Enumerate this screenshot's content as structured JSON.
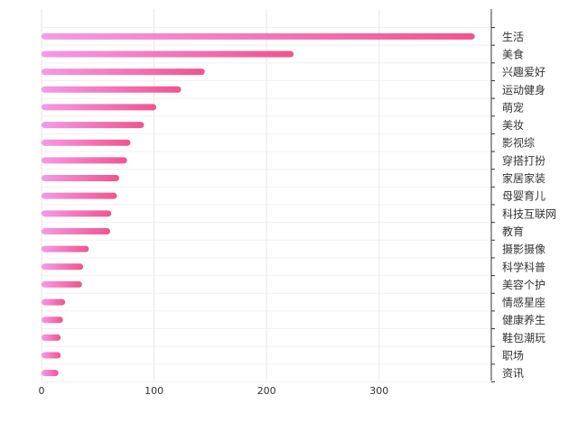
{
  "chart_data": {
    "type": "bar",
    "orientation": "horizontal",
    "categories": [
      "生活",
      "美食",
      "兴趣爱好",
      "运动健身",
      "萌宠",
      "美妆",
      "影视综",
      "穿搭打扮",
      "家居家装",
      "母婴育儿",
      "科技互联网",
      "教育",
      "摄影摄像",
      "科学科普",
      "美容个护",
      "情感星座",
      "健康养生",
      "鞋包潮玩",
      "职场",
      "资讯"
    ],
    "values": [
      385,
      224,
      145,
      124,
      102,
      91,
      79,
      76,
      69,
      67,
      62,
      61,
      42,
      37,
      36,
      21,
      19,
      17,
      17,
      15
    ],
    "xticks": [
      "0",
      "100",
      "200",
      "300"
    ],
    "xlim": [
      0,
      400
    ],
    "title": "",
    "xlabel": "",
    "ylabel": "",
    "grid": "vertical",
    "legend": "none",
    "colors": {
      "gradient_start": "#f49ae8",
      "gradient_end": "#f2538c",
      "grid": "#e6e6e6",
      "axis": "#333333",
      "text": "#333333"
    }
  }
}
